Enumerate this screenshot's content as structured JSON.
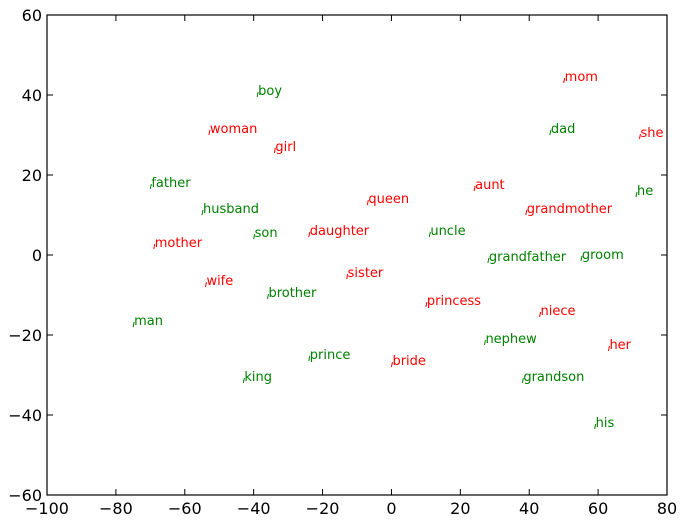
{
  "chart_data": {
    "type": "scatter",
    "title": "",
    "xlabel": "",
    "ylabel": "",
    "xlim": [
      -100,
      80
    ],
    "ylim": [
      -60,
      60
    ],
    "x_ticks": [
      -100,
      -80,
      -60,
      -40,
      -20,
      0,
      20,
      40,
      60,
      80
    ],
    "y_ticks": [
      -60,
      -40,
      -20,
      0,
      20,
      40,
      60
    ],
    "x_tick_labels": [
      "−100",
      "−80",
      "−60",
      "−40",
      "−20",
      "0",
      "20",
      "40",
      "60",
      "80"
    ],
    "y_tick_labels": [
      "−60",
      "−40",
      "−20",
      "0",
      "20",
      "40",
      "60"
    ],
    "grid": false,
    "colors": {
      "female": "#ff0000",
      "male": "#008000"
    },
    "points": [
      {
        "label": "mom",
        "x": 50,
        "y": 43.5,
        "group": "female"
      },
      {
        "label": "boy",
        "x": -39,
        "y": 40,
        "group": "male"
      },
      {
        "label": "woman",
        "x": -53,
        "y": 30.5,
        "group": "female"
      },
      {
        "label": "dad",
        "x": 46,
        "y": 30.5,
        "group": "male"
      },
      {
        "label": "she",
        "x": 72,
        "y": 29.5,
        "group": "female"
      },
      {
        "label": "girl",
        "x": -34,
        "y": 26,
        "group": "female"
      },
      {
        "label": "father",
        "x": -70,
        "y": 17,
        "group": "male"
      },
      {
        "label": "aunt",
        "x": 24,
        "y": 16.5,
        "group": "female"
      },
      {
        "label": "he",
        "x": 71,
        "y": 15,
        "group": "male"
      },
      {
        "label": "queen",
        "x": -7,
        "y": 13,
        "group": "female"
      },
      {
        "label": "husband",
        "x": -55,
        "y": 10.5,
        "group": "male"
      },
      {
        "label": "grandmother",
        "x": 39,
        "y": 10.5,
        "group": "female"
      },
      {
        "label": "daughter",
        "x": -24,
        "y": 5,
        "group": "female"
      },
      {
        "label": "son",
        "x": -40,
        "y": 4.5,
        "group": "male"
      },
      {
        "label": "uncle",
        "x": 11,
        "y": 5,
        "group": "male"
      },
      {
        "label": "mother",
        "x": -69,
        "y": 2,
        "group": "female"
      },
      {
        "label": "grandfather",
        "x": 28,
        "y": -1.5,
        "group": "male"
      },
      {
        "label": "groom",
        "x": 55,
        "y": -1,
        "group": "male"
      },
      {
        "label": "sister",
        "x": -13,
        "y": -5.5,
        "group": "female"
      },
      {
        "label": "wife",
        "x": -54,
        "y": -7.5,
        "group": "female"
      },
      {
        "label": "brother",
        "x": -36,
        "y": -10.5,
        "group": "male"
      },
      {
        "label": "princess",
        "x": 10,
        "y": -12.5,
        "group": "female"
      },
      {
        "label": "niece",
        "x": 43,
        "y": -15,
        "group": "female"
      },
      {
        "label": "man",
        "x": -75,
        "y": -17.5,
        "group": "male"
      },
      {
        "label": "nephew",
        "x": 27,
        "y": -22,
        "group": "male"
      },
      {
        "label": "her",
        "x": 63,
        "y": -23.5,
        "group": "female"
      },
      {
        "label": "prince",
        "x": -24,
        "y": -26,
        "group": "male"
      },
      {
        "label": "bride",
        "x": 0,
        "y": -27.5,
        "group": "female"
      },
      {
        "label": "king",
        "x": -43,
        "y": -31.5,
        "group": "male"
      },
      {
        "label": "grandson",
        "x": 38,
        "y": -31.5,
        "group": "male"
      },
      {
        "label": "his",
        "x": 59,
        "y": -43,
        "group": "male"
      }
    ]
  }
}
